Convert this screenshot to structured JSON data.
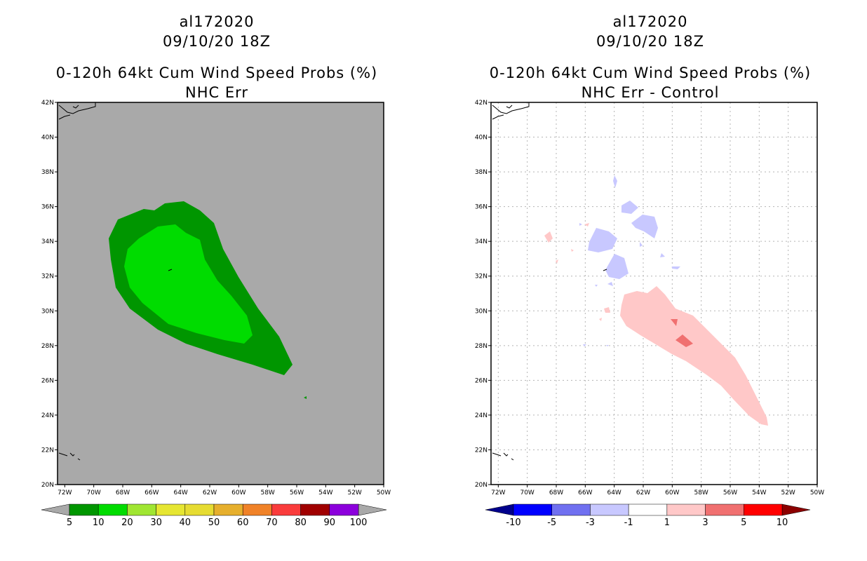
{
  "panels": [
    {
      "storm_id": "al172020",
      "datetime": "09/10/20 18Z",
      "product": "0-120h 64kt Cum Wind Speed Probs (%)",
      "subtitle": "NHC Err",
      "map_background": "#a9a9a9",
      "colorbar": {
        "labels": [
          "5",
          "10",
          "20",
          "30",
          "40",
          "50",
          "60",
          "70",
          "80",
          "90",
          "100"
        ],
        "left_arrow_color": "#a9a9a9",
        "right_arrow_color": "#a9a9a9",
        "colors": [
          "#009600",
          "#00dc00",
          "#a0e632",
          "#e6e632",
          "#e6dc32",
          "#e6af2d",
          "#f08228",
          "#fa3c3c",
          "#a00000",
          "#8c00dc"
        ]
      }
    },
    {
      "storm_id": "al172020",
      "datetime": "09/10/20 18Z",
      "product": "0-120h 64kt Cum Wind Speed Probs (%)",
      "subtitle": "NHC Err - Control",
      "map_background": "#ffffff",
      "colorbar": {
        "labels": [
          "-10",
          "-5",
          "-3",
          "-1",
          "1",
          "3",
          "5",
          "10"
        ],
        "left_arrow_color": "#00008c",
        "right_arrow_color": "#8c0000",
        "colors": [
          "#0000ff",
          "#7070f0",
          "#c8c8ff",
          "#ffffff",
          "#ffc8c8",
          "#f07070",
          "#ff0000"
        ]
      }
    }
  ],
  "axes": {
    "lat_labels": [
      "20N",
      "22N",
      "24N",
      "26N",
      "28N",
      "30N",
      "32N",
      "34N",
      "36N",
      "38N",
      "40N",
      "42N"
    ],
    "lon_labels": [
      "72W",
      "70W",
      "68W",
      "66W",
      "64W",
      "62W",
      "60W",
      "58W",
      "56W",
      "54W",
      "52W",
      "50W"
    ],
    "lat_range": [
      20,
      42
    ],
    "lon_range": [
      -72.5,
      -50
    ]
  },
  "legend_colors": {
    "prob_10": "#009600",
    "prob_20": "#00dc00",
    "diff_neg": "#c8c8ff",
    "diff_pos": "#ffc8c8",
    "diff_pos_strong": "#f07070"
  }
}
